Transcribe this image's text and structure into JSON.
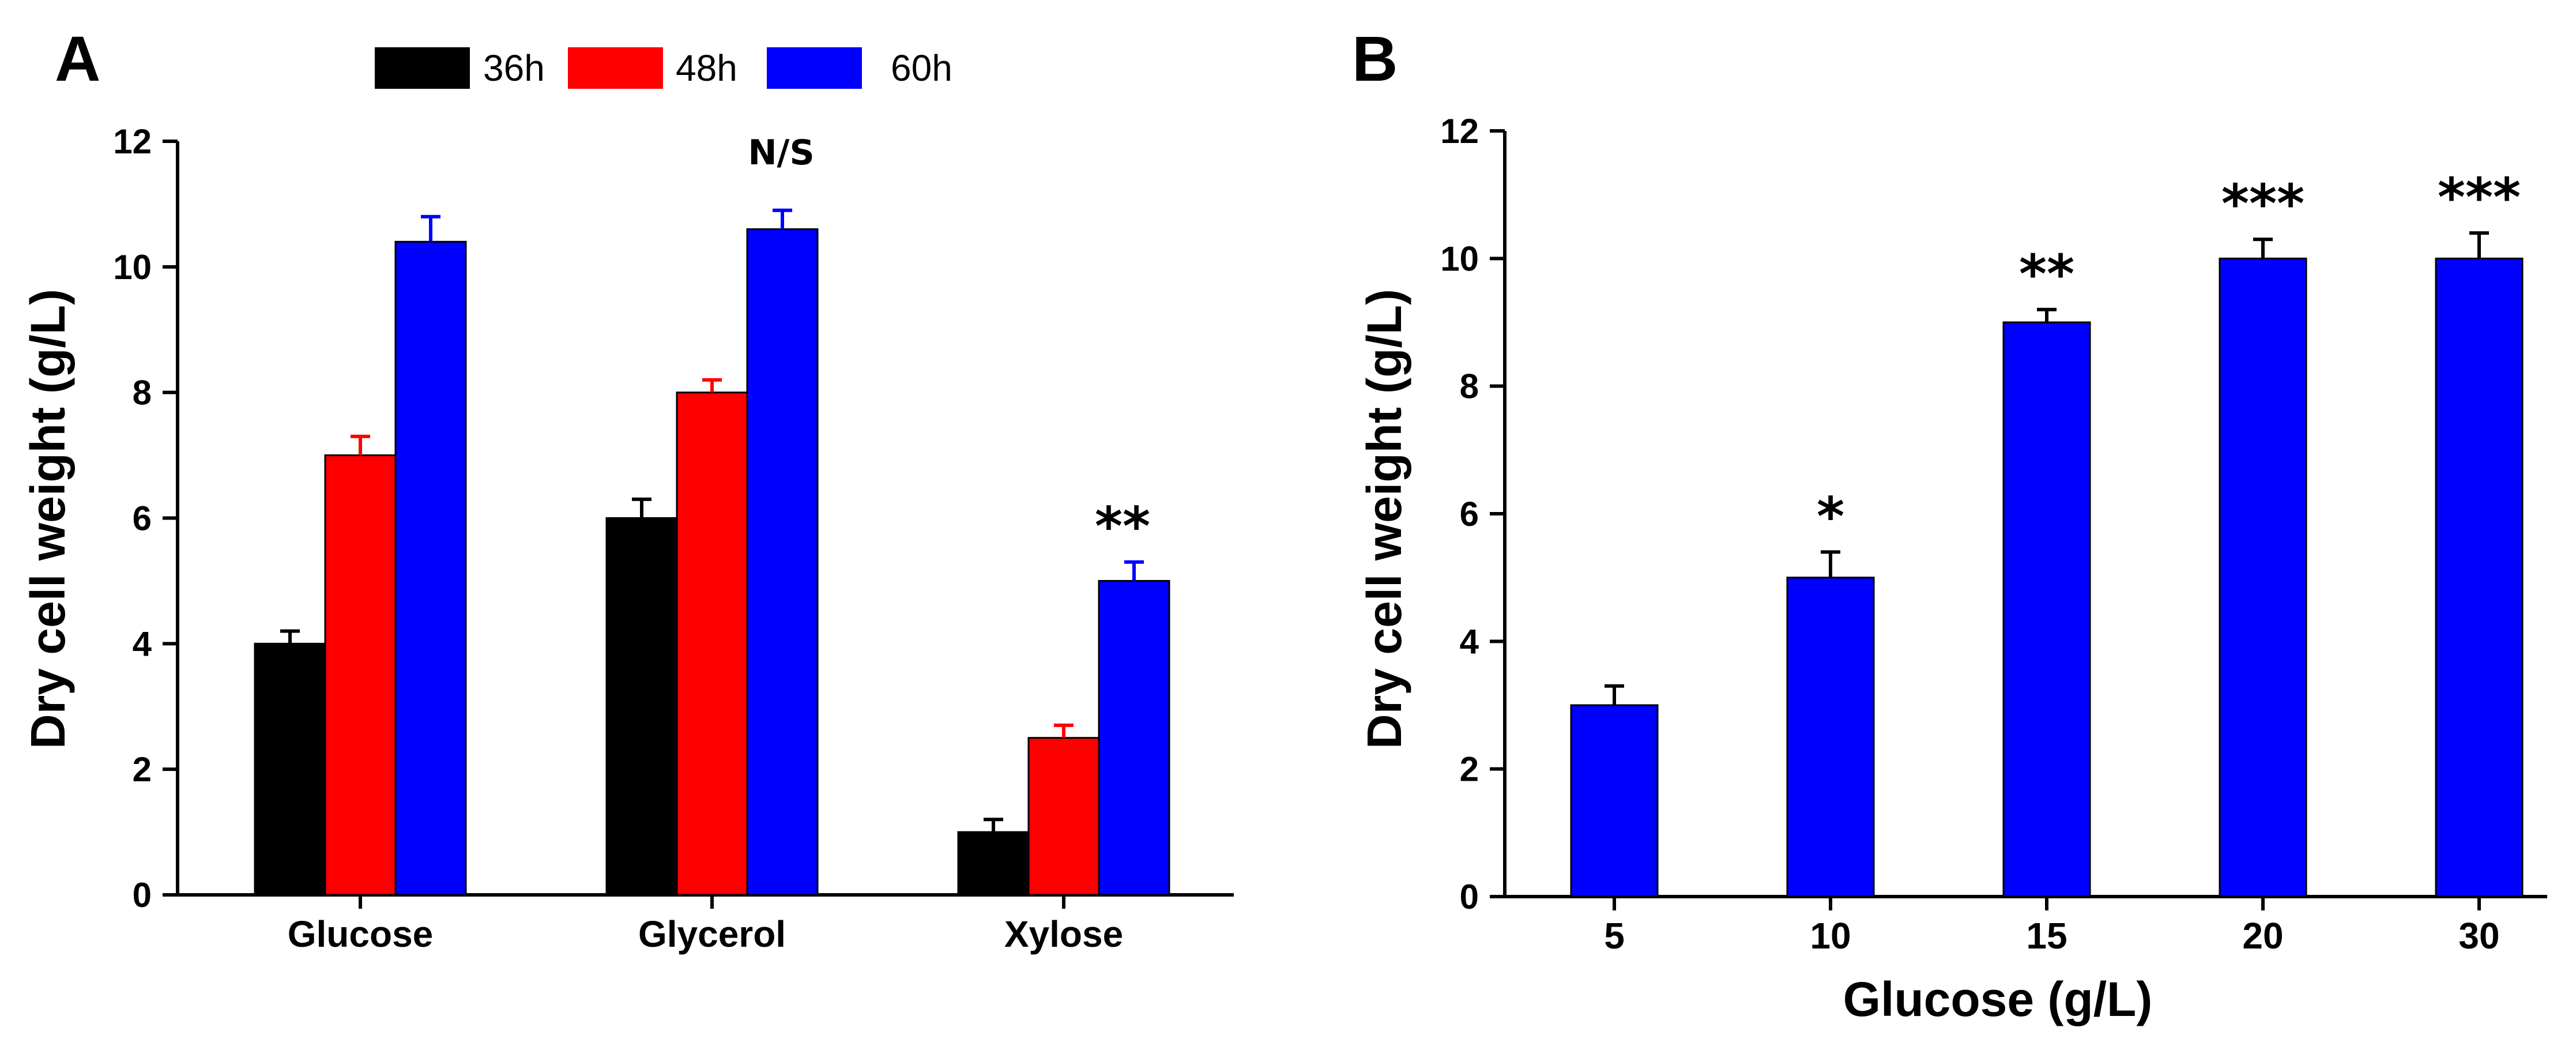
{
  "chart_data": [
    {
      "panel": "A",
      "type": "bar",
      "categories": [
        "Glucose",
        "Glycerol",
        "Xylose"
      ],
      "series": [
        {
          "name": "36h",
          "color": "#000000",
          "values": [
            4.0,
            6.0,
            1.0
          ],
          "errors": [
            0.2,
            0.3,
            0.2
          ]
        },
        {
          "name": "48h",
          "color": "#ff0000",
          "values": [
            7.0,
            8.0,
            2.5
          ],
          "errors": [
            0.3,
            0.2,
            0.2
          ]
        },
        {
          "name": "60h",
          "color": "#0000ff",
          "values": [
            10.4,
            10.6,
            5.0
          ],
          "errors": [
            0.4,
            0.3,
            0.3
          ]
        }
      ],
      "xlabel": "",
      "ylabel": "Dry cell weight (g/L)",
      "ylim": [
        0,
        12
      ],
      "yticks": [
        0,
        2,
        4,
        6,
        8,
        10,
        12
      ],
      "legend_position": "top",
      "annotations": [
        {
          "category": "Glycerol",
          "text": "N/S"
        },
        {
          "category": "Xylose",
          "text": "**"
        }
      ]
    },
    {
      "panel": "B",
      "type": "bar",
      "categories": [
        "5",
        "10",
        "15",
        "20",
        "30"
      ],
      "series": [
        {
          "name": "Dry cell weight",
          "color": "#0000ff",
          "values": [
            3.0,
            5.0,
            9.0,
            10.0,
            10.0
          ],
          "errors": [
            0.3,
            0.4,
            0.2,
            0.3,
            0.4
          ]
        }
      ],
      "xlabel": "Glucose (g/L)",
      "ylabel": "Dry cell weight (g/L)",
      "ylim": [
        0,
        12
      ],
      "yticks": [
        0,
        2,
        4,
        6,
        8,
        10,
        12
      ],
      "annotations": [
        {
          "category": "5",
          "text": ""
        },
        {
          "category": "10",
          "text": "*"
        },
        {
          "category": "15",
          "text": "**"
        },
        {
          "category": "20",
          "text": "***"
        },
        {
          "category": "30",
          "text": "***"
        }
      ]
    }
  ]
}
